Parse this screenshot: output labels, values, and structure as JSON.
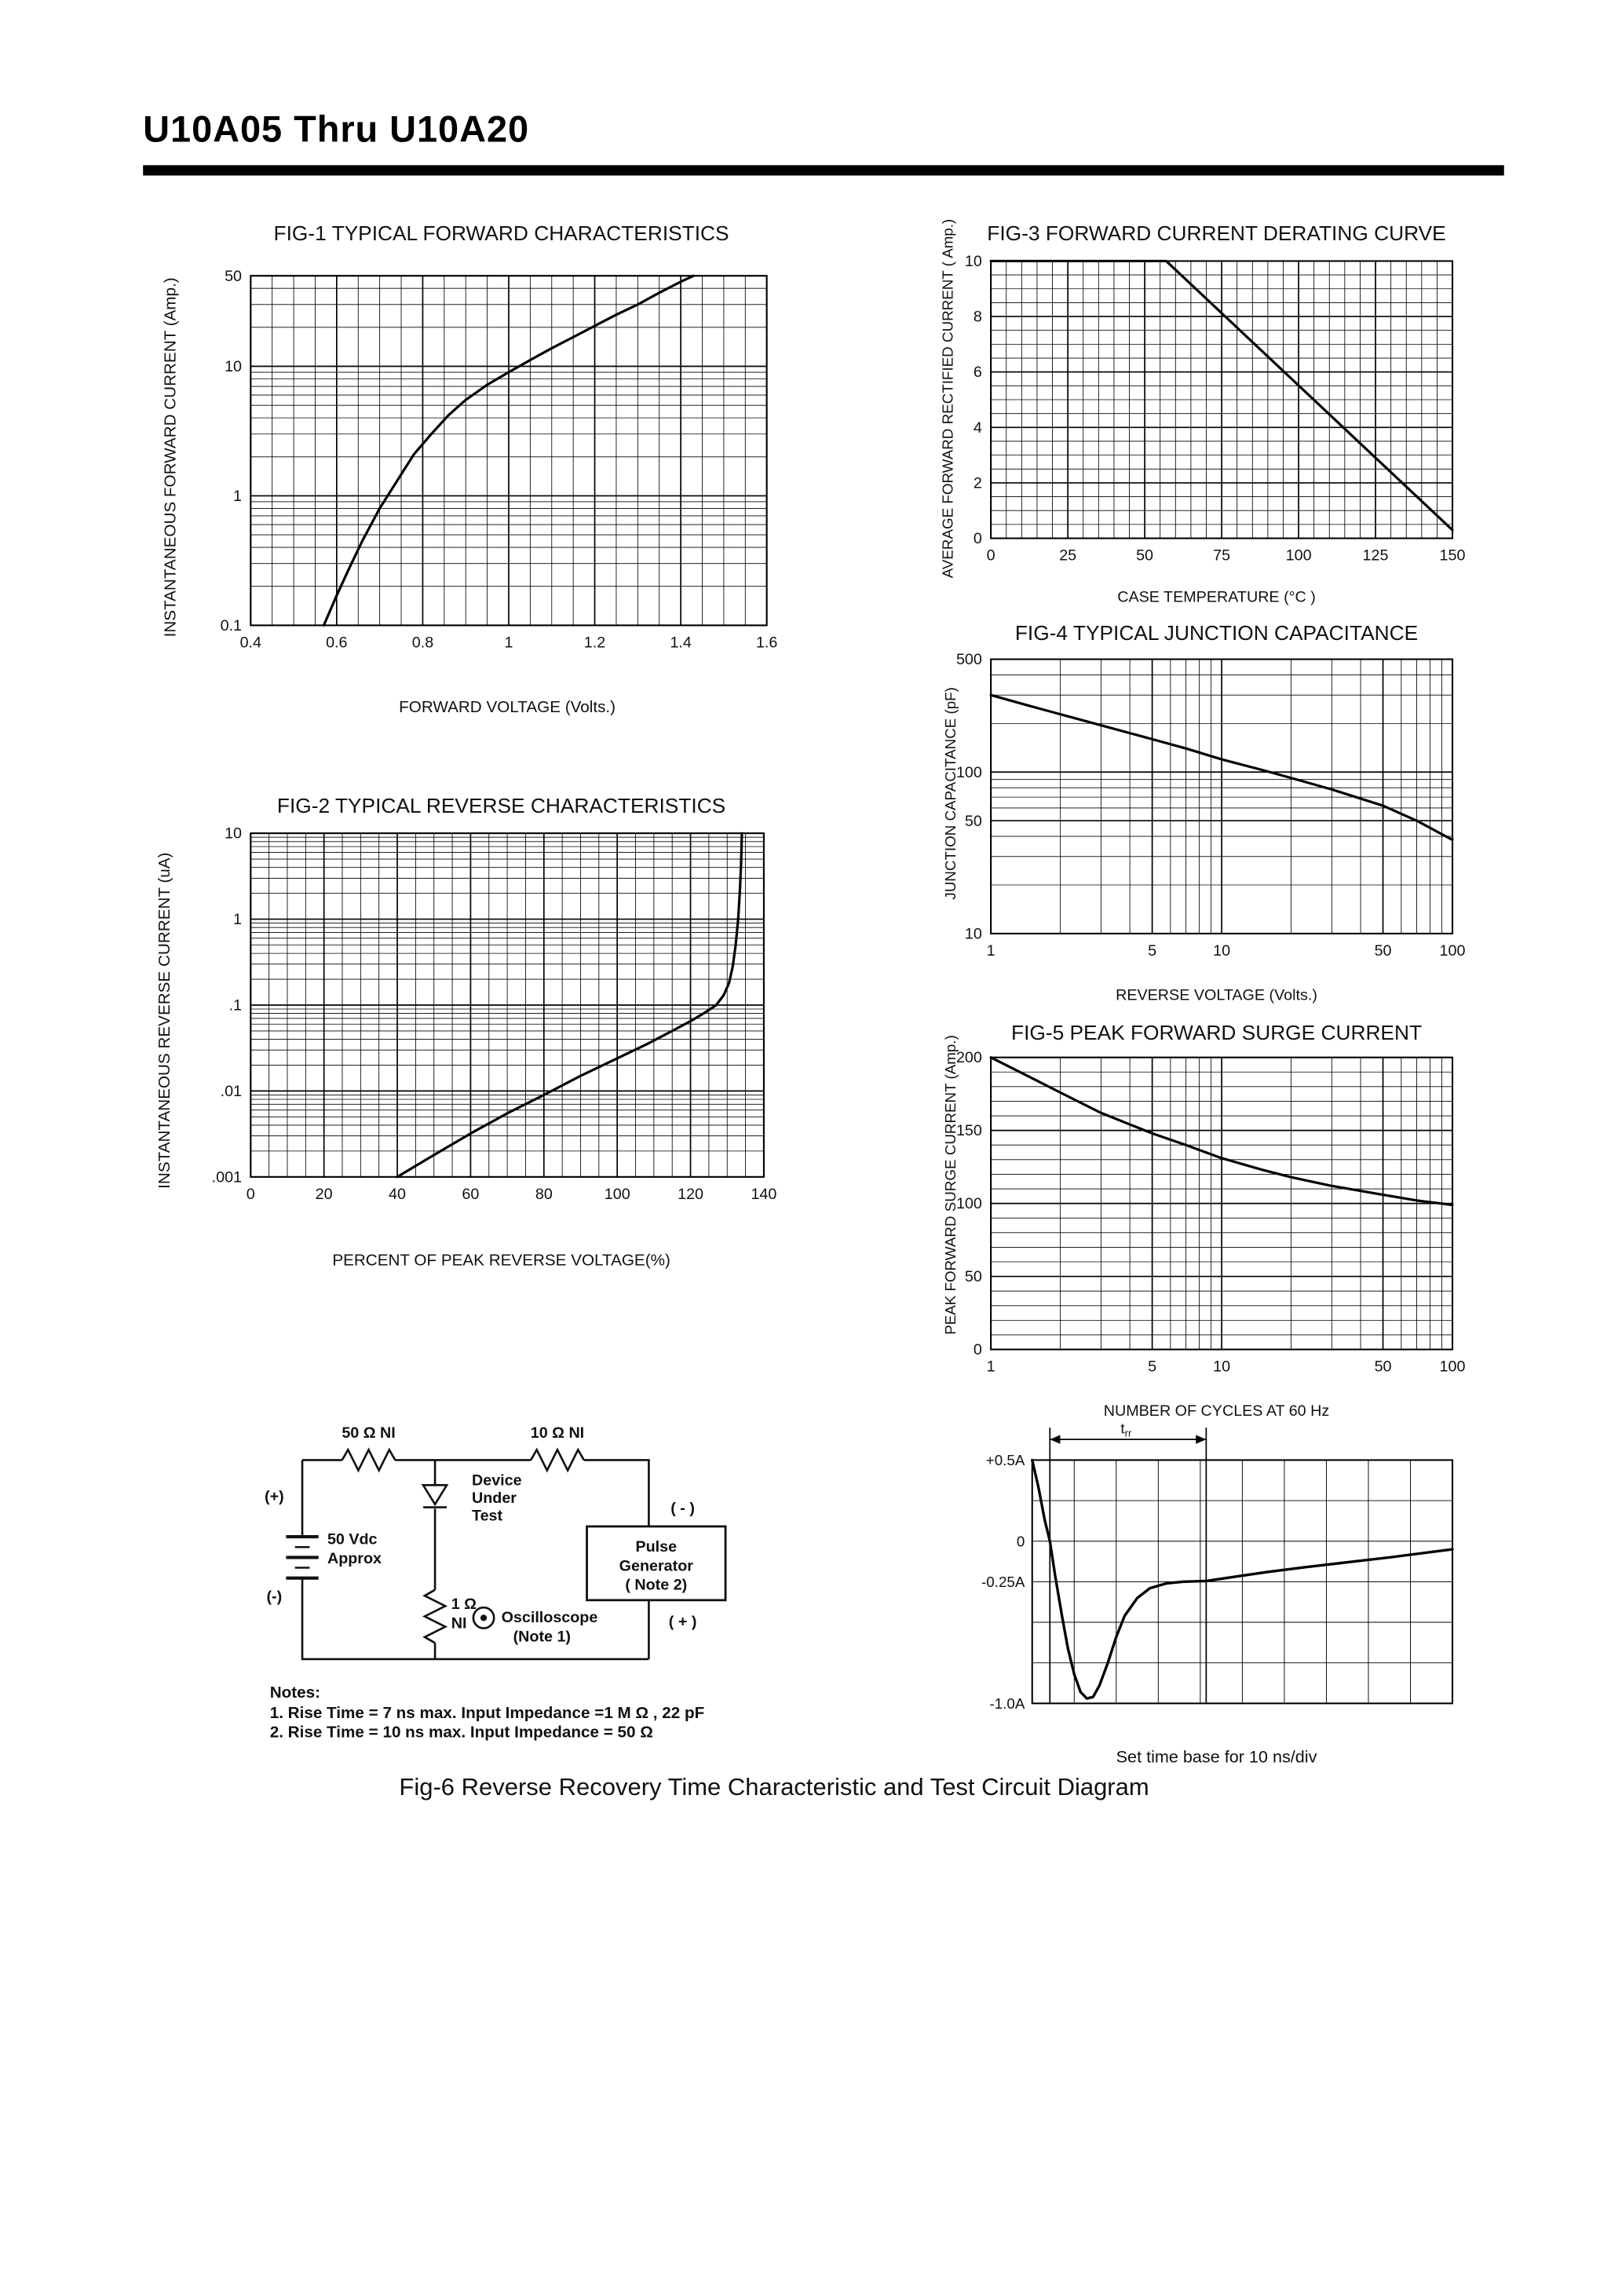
{
  "page": {
    "title": "U10A05 Thru U10A20",
    "caption": "Fig-6 Reverse Recovery Time Characteristic and Test Circuit Diagram"
  },
  "charts": {
    "fig1": {
      "type": "line",
      "title": "FIG-1 TYPICAL FORWARD CHARACTERISTICS",
      "xlabel": "FORWARD VOLTAGE (Volts.)",
      "ylabel": "INSTANTANEOUS FORWARD CURRENT (Amp.)",
      "x_scale": "linear",
      "y_scale": "log",
      "x_range": [
        0.4,
        1.6
      ],
      "y_range": [
        0.1,
        50
      ],
      "x_grid_step": 0.05,
      "x_ticks": [
        [
          0.4,
          "0.4"
        ],
        [
          0.6,
          "0.6"
        ],
        [
          0.8,
          "0.8"
        ],
        [
          1,
          "1"
        ],
        [
          1.2,
          "1.2"
        ],
        [
          1.4,
          "1.4"
        ],
        [
          1.6,
          "1.6"
        ]
      ],
      "y_ticks": [
        [
          50,
          "50"
        ],
        [
          10,
          "10"
        ],
        [
          1,
          "1"
        ],
        [
          0.1,
          "0.1"
        ]
      ],
      "points": [
        [
          0.57,
          0.1
        ],
        [
          0.6,
          0.17
        ],
        [
          0.63,
          0.28
        ],
        [
          0.66,
          0.45
        ],
        [
          0.7,
          0.8
        ],
        [
          0.74,
          1.3
        ],
        [
          0.78,
          2.1
        ],
        [
          0.82,
          3
        ],
        [
          0.86,
          4.2
        ],
        [
          0.9,
          5.5
        ],
        [
          0.95,
          7.2
        ],
        [
          1,
          9
        ],
        [
          1.05,
          11.2
        ],
        [
          1.1,
          13.8
        ],
        [
          1.15,
          16.8
        ],
        [
          1.2,
          20.5
        ],
        [
          1.25,
          25
        ],
        [
          1.3,
          30
        ],
        [
          1.35,
          37
        ],
        [
          1.4,
          45
        ],
        [
          1.43,
          50
        ]
      ]
    },
    "fig2": {
      "type": "line",
      "title": "FIG-2 TYPICAL REVERSE CHARACTERISTICS",
      "xlabel": "PERCENT OF PEAK REVERSE VOLTAGE(%)",
      "ylabel": "INSTANTANEOUS REVERSE CURRENT (uA)",
      "x_scale": "linear",
      "y_scale": "log",
      "x_range": [
        0,
        140
      ],
      "y_range": [
        0.001,
        10
      ],
      "x_grid_step": 5,
      "x_ticks": [
        [
          0,
          "0"
        ],
        [
          20,
          "20"
        ],
        [
          40,
          "40"
        ],
        [
          60,
          "60"
        ],
        [
          80,
          "80"
        ],
        [
          100,
          "100"
        ],
        [
          120,
          "120"
        ],
        [
          140,
          "140"
        ]
      ],
      "y_ticks": [
        [
          10,
          "10"
        ],
        [
          1,
          "1"
        ],
        [
          0.1,
          ".1"
        ],
        [
          0.01,
          ".01"
        ],
        [
          0.001,
          ".001"
        ]
      ],
      "points": [
        [
          40,
          0.001
        ],
        [
          50,
          0.0018
        ],
        [
          60,
          0.0032
        ],
        [
          70,
          0.0055
        ],
        [
          80,
          0.009
        ],
        [
          90,
          0.015
        ],
        [
          100,
          0.024
        ],
        [
          108,
          0.035
        ],
        [
          115,
          0.05
        ],
        [
          120,
          0.065
        ],
        [
          124,
          0.082
        ],
        [
          127,
          0.1
        ],
        [
          129,
          0.13
        ],
        [
          130.5,
          0.18
        ],
        [
          131.5,
          0.28
        ],
        [
          132.3,
          0.5
        ],
        [
          133,
          1
        ],
        [
          133.5,
          2.2
        ],
        [
          133.8,
          4.5
        ],
        [
          134,
          10
        ]
      ]
    },
    "fig3": {
      "type": "line",
      "title": "FIG-3 FORWARD CURRENT DERATING CURVE",
      "xlabel": "CASE TEMPERATURE (°C )",
      "ylabel": "AVERAGE FORWARD RECTIFIED CURRENT ( Amp.)",
      "x_scale": "linear",
      "y_scale": "linear",
      "x_range": [
        0,
        150
      ],
      "y_range": [
        0,
        10
      ],
      "x_grid_step": 5,
      "y_grid_step": 0.5,
      "x_ticks": [
        [
          0,
          "0"
        ],
        [
          25,
          "25"
        ],
        [
          50,
          "50"
        ],
        [
          75,
          "75"
        ],
        [
          100,
          "100"
        ],
        [
          125,
          "125"
        ],
        [
          150,
          "150"
        ]
      ],
      "y_ticks": [
        [
          0,
          "0"
        ],
        [
          2,
          "2"
        ],
        [
          4,
          "4"
        ],
        [
          6,
          "6"
        ],
        [
          8,
          "8"
        ],
        [
          10,
          "10"
        ]
      ],
      "points": [
        [
          0,
          10
        ],
        [
          57,
          10
        ],
        [
          150,
          0.3
        ]
      ]
    },
    "fig4": {
      "type": "line",
      "title": "FIG-4 TYPICAL JUNCTION CAPACITANCE",
      "xlabel": "REVERSE VOLTAGE (Volts.)",
      "ylabel": "JUNCTION CAPACITANCE (pF)",
      "x_scale": "log",
      "y_scale": "log",
      "x_range": [
        1,
        100
      ],
      "y_range": [
        10,
        500
      ],
      "x_ticks": [
        [
          1,
          "1"
        ],
        [
          5,
          "5"
        ],
        [
          10,
          "10"
        ],
        [
          50,
          "50"
        ],
        [
          100,
          "100"
        ]
      ],
      "y_ticks": [
        [
          500,
          "500"
        ],
        [
          100,
          "100"
        ],
        [
          50,
          "50"
        ],
        [
          10,
          "10"
        ]
      ],
      "points": [
        [
          1,
          300
        ],
        [
          1.5,
          255
        ],
        [
          2,
          228
        ],
        [
          3,
          195
        ],
        [
          5,
          160
        ],
        [
          7,
          140
        ],
        [
          10,
          120
        ],
        [
          15,
          103
        ],
        [
          20,
          92
        ],
        [
          30,
          78
        ],
        [
          50,
          62
        ],
        [
          70,
          50
        ],
        [
          100,
          38
        ]
      ]
    },
    "fig5": {
      "type": "line",
      "title": "FIG-5 PEAK FORWARD SURGE CURRENT",
      "xlabel": "NUMBER OF CYCLES AT 60 Hz",
      "ylabel": "PEAK FORWARD SURGE CURRENT (Amp.)",
      "x_scale": "log",
      "y_scale": "linear",
      "x_range": [
        1,
        100
      ],
      "y_range": [
        0,
        200
      ],
      "y_grid_step": 10,
      "x_ticks": [
        [
          1,
          "1"
        ],
        [
          5,
          "5"
        ],
        [
          10,
          "10"
        ],
        [
          50,
          "50"
        ],
        [
          100,
          "100"
        ]
      ],
      "y_ticks": [
        [
          0,
          "0"
        ],
        [
          50,
          "50"
        ],
        [
          100,
          "100"
        ],
        [
          150,
          "150"
        ],
        [
          200,
          "200"
        ]
      ],
      "points": [
        [
          1,
          200
        ],
        [
          1.5,
          186
        ],
        [
          2,
          176
        ],
        [
          3,
          162
        ],
        [
          5,
          148
        ],
        [
          7,
          140
        ],
        [
          10,
          131
        ],
        [
          15,
          123
        ],
        [
          20,
          118
        ],
        [
          30,
          112
        ],
        [
          50,
          106
        ],
        [
          70,
          102
        ],
        [
          100,
          99
        ]
      ]
    }
  },
  "waveform": {
    "y_labels": [
      [
        "+0.5A",
        0.5
      ],
      [
        "0",
        0
      ],
      [
        "-0.25A",
        -0.25
      ],
      [
        "-1.0A",
        -1
      ]
    ],
    "trr_base": "t",
    "trr_sub": "rr",
    "trr_span_div": [
      0.42,
      4.14
    ],
    "set_time_base": "Set time base for 10  ns/div",
    "points": [
      [
        0,
        0.5
      ],
      [
        0.15,
        0.33
      ],
      [
        0.3,
        0.13
      ],
      [
        0.42,
        0
      ],
      [
        0.55,
        -0.22
      ],
      [
        0.7,
        -0.45
      ],
      [
        0.85,
        -0.66
      ],
      [
        1,
        -0.82
      ],
      [
        1.15,
        -0.93
      ],
      [
        1.3,
        -0.97
      ],
      [
        1.45,
        -0.96
      ],
      [
        1.6,
        -0.89
      ],
      [
        1.8,
        -0.75
      ],
      [
        2,
        -0.59
      ],
      [
        2.2,
        -0.46
      ],
      [
        2.5,
        -0.35
      ],
      [
        2.8,
        -0.29
      ],
      [
        3.2,
        -0.26
      ],
      [
        3.6,
        -0.25
      ],
      [
        4.14,
        -0.245
      ],
      [
        4.8,
        -0.22
      ],
      [
        5.6,
        -0.19
      ],
      [
        6.5,
        -0.16
      ],
      [
        7.5,
        -0.13
      ],
      [
        8.5,
        -0.1
      ],
      [
        10,
        -0.05
      ]
    ]
  },
  "circuit": {
    "r1_label": "50 Ω  NI",
    "r2_label": "10 Ω  NI",
    "battery_plus": "(+)",
    "battery_minus": "(-)",
    "battery_value_1": "50 Vdc",
    "battery_value_2": "Approx",
    "dut_1": "Device",
    "dut_2": "Under",
    "dut_3": "Test",
    "pulse_1": "Pulse",
    "pulse_2": "Generator",
    "pulse_3": "( Note 2)",
    "pulse_minus": "( - )",
    "pulse_plus": "( + )",
    "r3_label_1": "1 Ω",
    "r3_label_2": "NI",
    "scope_1": "Oscilloscope",
    "scope_2": "(Note 1)",
    "notes_title": "Notes:",
    "note_1": "1. Rise Time = 7 ns max. Input Impedance =1 M Ω , 22 pF",
    "note_2": "2. Rise Time = 10 ns max. Input Impedance = 50 Ω"
  }
}
